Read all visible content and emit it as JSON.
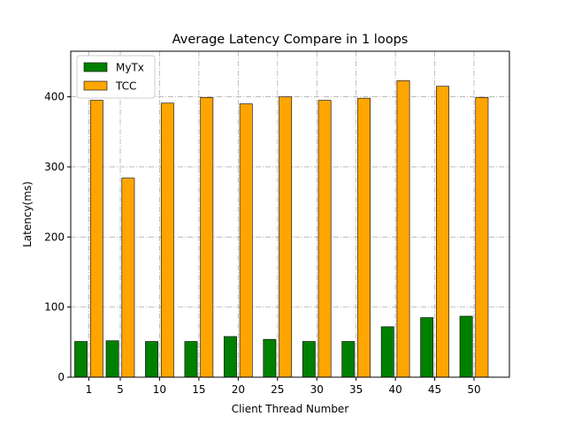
{
  "chart_data": {
    "type": "bar",
    "title": "Average Latency Compare in 1 loops",
    "xlabel": "Client Thread Number",
    "ylabel": "Latency(ms)",
    "categories": [
      "1",
      "5",
      "10",
      "15",
      "20",
      "25",
      "30",
      "35",
      "40",
      "45",
      "50"
    ],
    "x": [
      1,
      5,
      10,
      15,
      20,
      25,
      30,
      35,
      40,
      45,
      50
    ],
    "xlim": [
      -1.3,
      54.5
    ],
    "ylim": [
      0,
      465
    ],
    "yticks": [
      0,
      100,
      200,
      300,
      400
    ],
    "grid": true,
    "legend_position": "top-left",
    "series": [
      {
        "name": "MyTx",
        "color": "#008000",
        "values": [
          51,
          52,
          51,
          51,
          58,
          54,
          51,
          51,
          72,
          85,
          87
        ]
      },
      {
        "name": "TCC",
        "color": "#ffa500",
        "values": [
          395,
          284,
          391,
          399,
          390,
          400,
          395,
          398,
          423,
          415,
          399
        ]
      }
    ]
  }
}
